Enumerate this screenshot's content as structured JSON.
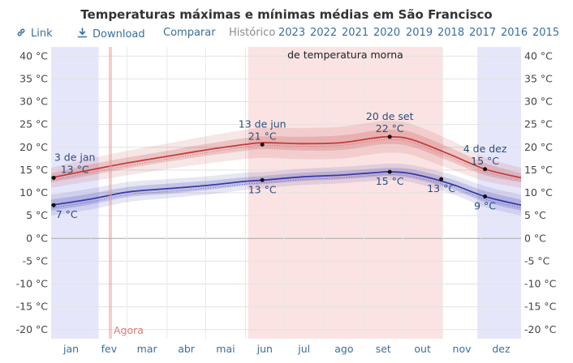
{
  "title": "Temperaturas máximas e mínimas médias em São Francisco",
  "toolbar": {
    "link_label": "Link",
    "download_label": "Download",
    "compare_label": "Comparar",
    "history_label": "Histórico",
    "years": [
      "2023",
      "2022",
      "2021",
      "2020",
      "2019",
      "2018",
      "2017",
      "2016",
      "2015"
    ]
  },
  "icons": {
    "link": "link-icon",
    "download": "download-icon"
  },
  "colors": {
    "high": "#c43b3b",
    "low": "#3a3aa8",
    "warm_band": "#fbe3e3",
    "cold_band": "#e6e6fb"
  },
  "chart_data": {
    "type": "line",
    "ylim": [
      -22,
      42
    ],
    "yticks": [
      40,
      35,
      30,
      25,
      20,
      15,
      10,
      5,
      0,
      -5,
      -10,
      -15,
      -20
    ],
    "ytick_labels": [
      "40 °C",
      "35 °C",
      "30 °C",
      "25 °C",
      "20 °C",
      "15 °C",
      "10 °C",
      "5 °C",
      "0 °C",
      "-5 °C",
      "-10 °C",
      "-15 °C",
      "-20 °C"
    ],
    "months": [
      "jan",
      "fev",
      "mar",
      "abr",
      "mai",
      "jun",
      "jul",
      "ago",
      "set",
      "out",
      "nov",
      "dez"
    ],
    "now_label": "Agora",
    "now_day": 46,
    "warm_season_label": "de temperatura morna",
    "warm_season_days": [
      153,
      304
    ],
    "cold_season_days": [
      [
        0,
        37
      ],
      [
        331,
        365
      ]
    ],
    "series": [
      {
        "key": "high",
        "x": [
          0,
          30,
          60,
          90,
          120,
          150,
          165,
          195,
          225,
          250,
          263,
          280,
          310,
          337,
          365
        ],
        "values": [
          13.3,
          15.0,
          16.6,
          18.0,
          19.4,
          20.6,
          21.0,
          20.8,
          21.0,
          22.0,
          22.3,
          21.7,
          18.4,
          15.2,
          13.3
        ],
        "band_inner": [
          1.0,
          1.2,
          1.2,
          1.2,
          1.3,
          1.4,
          1.4,
          1.5,
          1.6,
          1.6,
          1.6,
          1.6,
          1.5,
          1.3,
          1.0
        ],
        "band_outer": [
          2.2,
          2.5,
          2.7,
          2.8,
          3.0,
          3.2,
          3.3,
          3.4,
          3.5,
          3.5,
          3.5,
          3.4,
          3.2,
          2.6,
          2.2
        ]
      },
      {
        "key": "low",
        "x": [
          0,
          30,
          60,
          90,
          120,
          150,
          165,
          195,
          225,
          250,
          263,
          280,
          310,
          337,
          365
        ],
        "values": [
          7.3,
          8.6,
          10.2,
          10.9,
          11.6,
          12.5,
          12.8,
          13.5,
          13.9,
          14.4,
          14.6,
          14.2,
          12.0,
          9.2,
          7.3
        ],
        "band_inner": [
          1.2,
          1.2,
          1.1,
          1.1,
          1.0,
          0.9,
          0.9,
          0.9,
          0.9,
          0.9,
          0.9,
          1.0,
          1.1,
          1.2,
          1.2
        ],
        "band_outer": [
          2.3,
          2.3,
          2.2,
          2.1,
          2.0,
          1.9,
          1.8,
          1.8,
          1.8,
          1.8,
          1.8,
          1.9,
          2.1,
          2.3,
          2.3
        ]
      }
    ],
    "annotations": [
      {
        "x": 2,
        "y": 13.3,
        "series": "high",
        "lines": [
          "3 de jan",
          "13 °C"
        ],
        "pos": "above"
      },
      {
        "x": 2,
        "y": 7.3,
        "series": "low",
        "lines": [
          "7 °C"
        ],
        "pos": "below"
      },
      {
        "x": 164,
        "y": 20.6,
        "series": "high",
        "lines": [
          "13 de jun",
          "21 °C"
        ],
        "pos": "above"
      },
      {
        "x": 164,
        "y": 12.8,
        "series": "low",
        "lines": [
          "13 °C"
        ],
        "pos": "below"
      },
      {
        "x": 263,
        "y": 22.3,
        "series": "high",
        "lines": [
          "20 de set",
          "22 °C"
        ],
        "pos": "above"
      },
      {
        "x": 263,
        "y": 14.6,
        "series": "low",
        "lines": [
          "15 °C"
        ],
        "pos": "below"
      },
      {
        "x": 303,
        "y": 13.0,
        "series": "low",
        "lines": [
          "13 °C"
        ],
        "pos": "below"
      },
      {
        "x": 337,
        "y": 15.2,
        "series": "high",
        "lines": [
          "4 de dez",
          "15 °C"
        ],
        "pos": "above"
      },
      {
        "x": 337,
        "y": 9.2,
        "series": "low",
        "lines": [
          "9 °C"
        ],
        "pos": "below"
      }
    ]
  }
}
